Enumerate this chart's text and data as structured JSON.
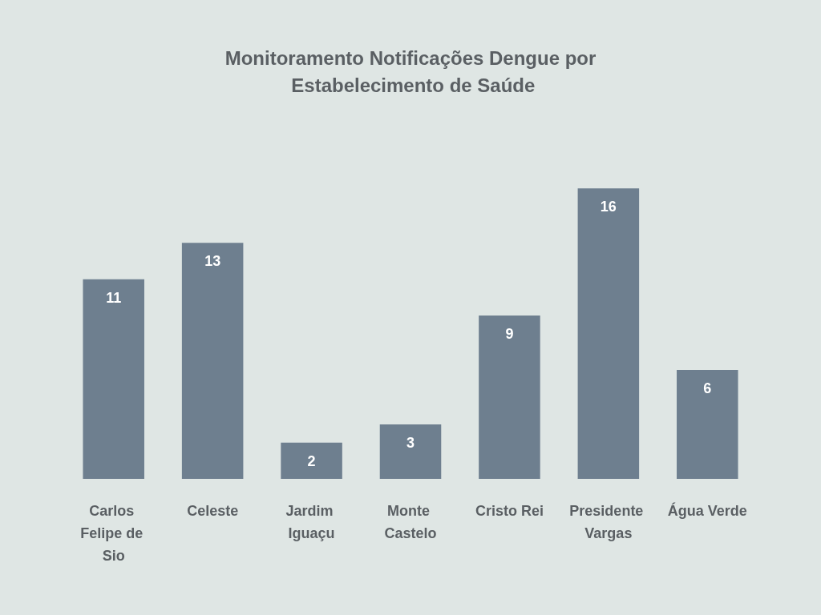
{
  "chart_data": {
    "type": "bar",
    "title": "Monitoramento Notificações Dengue por Estabelecimento de Saúde",
    "categories": [
      "Carlos Felipe de Sio",
      "Celeste",
      "Jardim Iguaçu",
      "Monte Castelo",
      "Cristo Rei",
      "Presidente Vargas",
      "Água Verde"
    ],
    "values": [
      11,
      13,
      2,
      3,
      9,
      16,
      6
    ],
    "color": "#6e7f8f",
    "data_labels": true
  }
}
